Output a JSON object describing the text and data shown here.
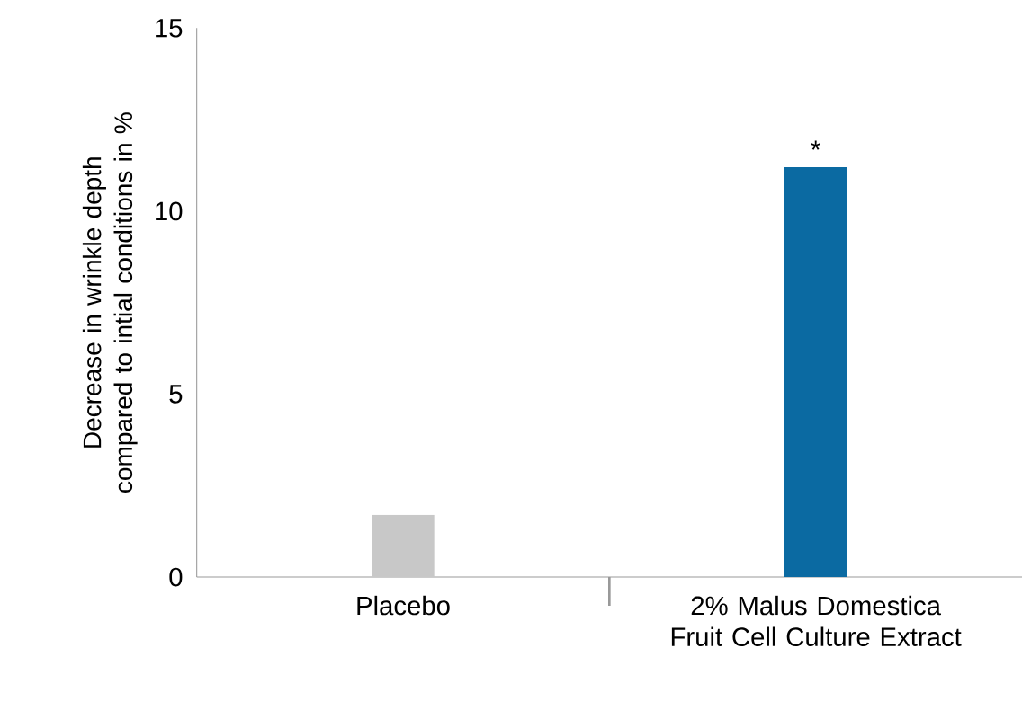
{
  "chart_data": {
    "type": "bar",
    "ylabel": "Decrease in wrinkle depth compared to intial conditions in %",
    "categories": [
      "Placebo",
      "2% Malus Domestica Fruit Cell Culture Extract"
    ],
    "values": [
      1.7,
      11.2
    ],
    "colors": [
      "#c8c8c8",
      "#0b6aa2"
    ],
    "ylim": [
      0,
      15
    ],
    "yticks": [
      0,
      5,
      10,
      15
    ],
    "annotations": [
      {
        "text": "*",
        "x": "2% Malus Domestica Fruit Cell Culture Extract",
        "y": 11.2
      }
    ]
  }
}
